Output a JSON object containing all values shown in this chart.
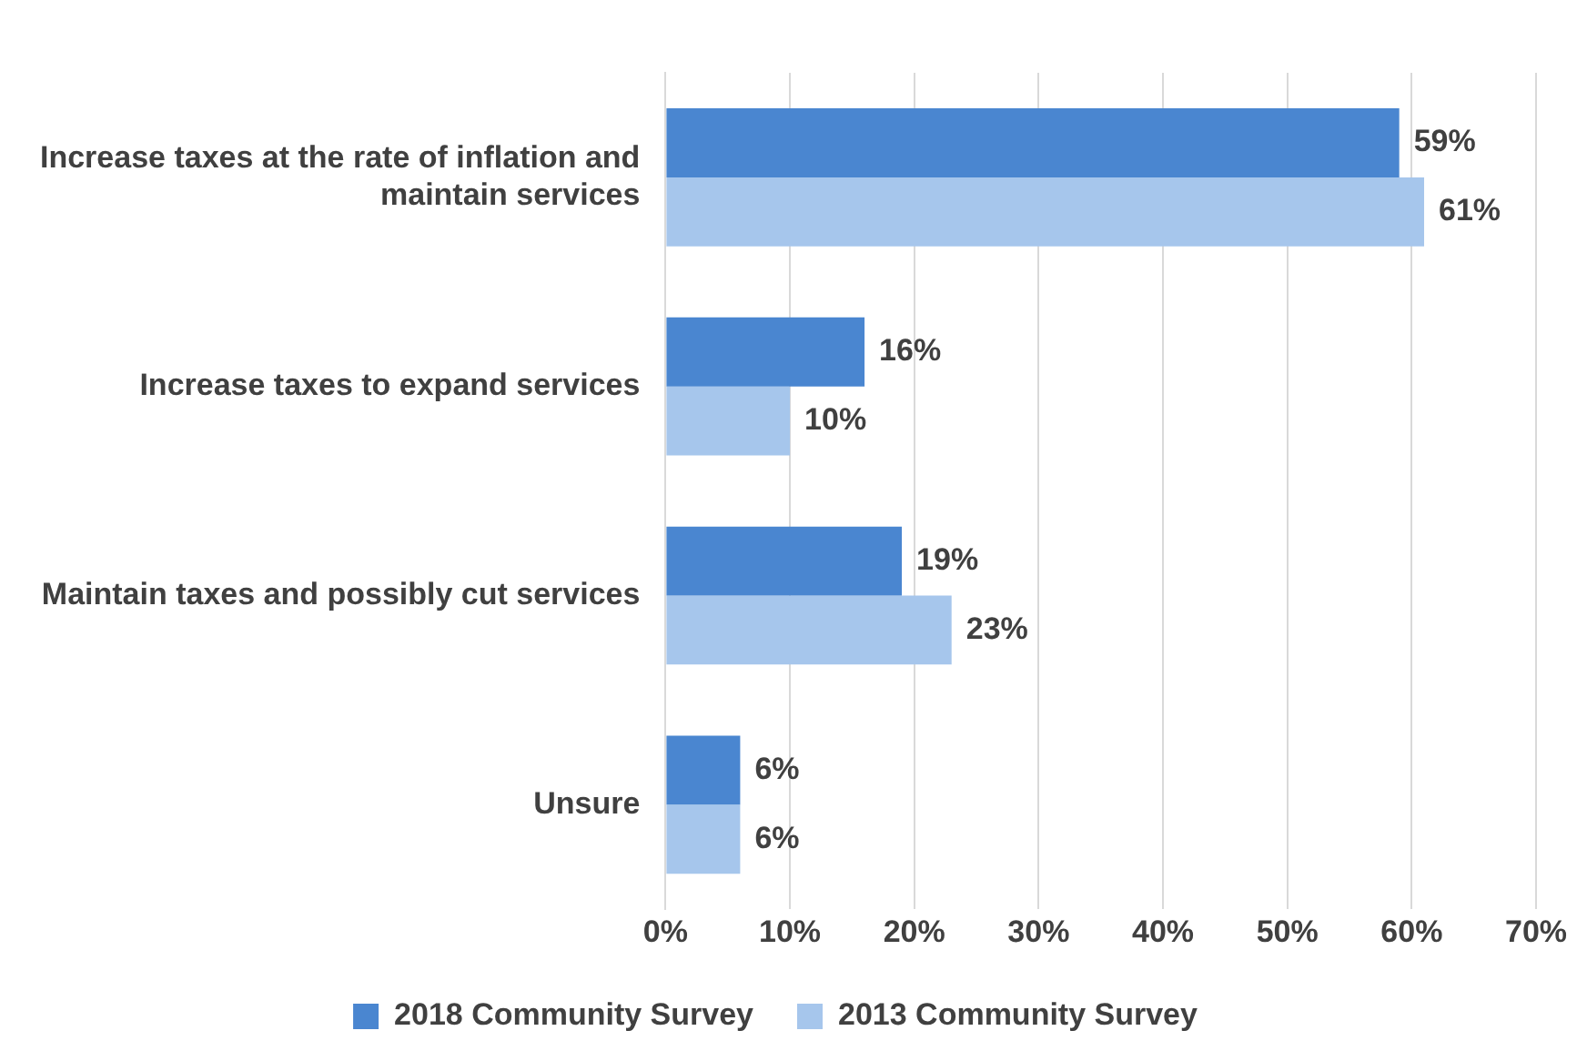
{
  "chart_data": {
    "type": "bar",
    "orientation": "horizontal",
    "categories": [
      "Increase taxes at the rate of inflation and maintain services",
      "Increase taxes to expand services",
      "Maintain taxes and possibly cut services",
      "Unsure"
    ],
    "series": [
      {
        "name": "2018 Community Survey",
        "color": "#4a86d0",
        "values": [
          59,
          16,
          19,
          6
        ],
        "value_labels": [
          "59%",
          "16%",
          "19%",
          "6%"
        ]
      },
      {
        "name": "2013 Community Survey",
        "color": "#a6c6ec",
        "values": [
          61,
          10,
          23,
          6
        ],
        "value_labels": [
          "61%",
          "10%",
          "23%",
          "6%"
        ]
      }
    ],
    "xlim": [
      0,
      70
    ],
    "xticks": [
      {
        "value": 0,
        "label": "0%"
      },
      {
        "value": 10,
        "label": "10%"
      },
      {
        "value": 20,
        "label": "20%"
      },
      {
        "value": 30,
        "label": "30%"
      },
      {
        "value": 40,
        "label": "40%"
      },
      {
        "value": 50,
        "label": "50%"
      },
      {
        "value": 60,
        "label": "60%"
      },
      {
        "value": 70,
        "label": "70%"
      }
    ],
    "grid": "x",
    "legend": "bottom"
  }
}
